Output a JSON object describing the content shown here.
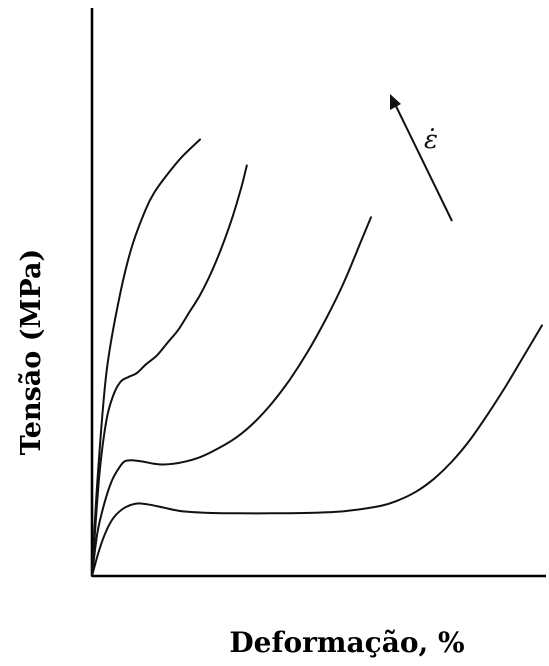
{
  "chart_data": {
    "type": "line",
    "xlabel": "Deformação, %",
    "ylabel": "Tensão (MPa)",
    "annotation": "ε̇",
    "ticks": "none",
    "grid": false,
    "legend": "none",
    "series": [
      {
        "x": [
          0,
          3,
          8,
          15,
          22,
          30,
          35,
          42,
          50,
          60
        ],
        "y": [
          0,
          22,
          47,
          64,
          76,
          85,
          89,
          93,
          97,
          101
        ]
      },
      {
        "x": [
          0,
          4,
          8,
          12,
          16,
          20,
          25,
          30,
          36,
          42,
          48,
          54,
          60,
          66,
          72,
          78,
          83,
          86
        ],
        "y": [
          0,
          23,
          36,
          42,
          45,
          46,
          47,
          49,
          51,
          54,
          57,
          61,
          65,
          70,
          76,
          83,
          90,
          95
        ]
      },
      {
        "x": [
          0,
          3,
          7,
          11,
          15,
          18,
          22,
          28,
          34,
          40,
          50,
          60,
          70,
          80,
          90,
          100,
          110,
          120,
          130,
          140,
          150,
          155
        ],
        "y": [
          0,
          10,
          17,
          22,
          25,
          26.5,
          26.8,
          26.5,
          26,
          25.8,
          26.3,
          27.5,
          29.5,
          32,
          35.5,
          40,
          45.5,
          52,
          59.5,
          68,
          78,
          83
        ]
      },
      {
        "x": [
          0,
          4,
          8,
          12,
          17,
          22,
          26,
          32,
          40,
          50,
          65,
          80,
          100,
          120,
          140,
          160,
          170,
          180,
          190,
          200,
          210,
          220,
          230,
          240,
          250
        ],
        "y": [
          0,
          6,
          10.5,
          13.5,
          15.5,
          16.5,
          16.8,
          16.5,
          15.8,
          15,
          14.6,
          14.5,
          14.5,
          14.6,
          15,
          16.2,
          17.5,
          19.5,
          22.5,
          26.5,
          31.5,
          37.5,
          44,
          51,
          58
        ]
      }
    ],
    "xlim": [
      0,
      250
    ],
    "ylim": [
      0,
      112
    ]
  }
}
